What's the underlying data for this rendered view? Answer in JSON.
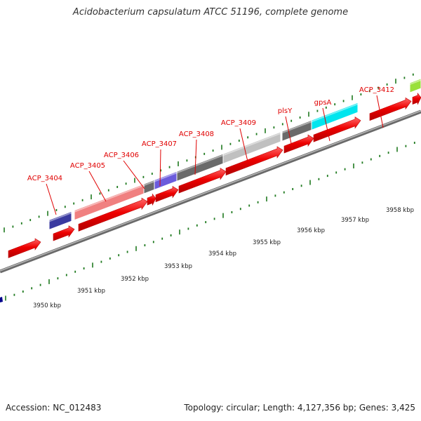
{
  "title": "Acidobacterium capsulatum ATCC 51196, complete genome",
  "footer": {
    "accession": "Accession: NC_012483",
    "summary": "Topology: circular; Length: 4,127,356 bp; Genes: 3,425"
  },
  "colors": {
    "backbone": "#8a8a8a",
    "tick_major": "#1f7a1f",
    "cds": "#ee0000",
    "label": "#e00000"
  },
  "gene_labels": [
    "ACP_3404",
    "ACP_3405",
    "ACP_3406",
    "ACP_3407",
    "ACP_3408",
    "ACP_3409",
    "plsY",
    "gpsA",
    "ACP_3412"
  ],
  "kbp_labels": [
    "3950 kbp",
    "3951 kbp",
    "3952 kbp",
    "3953 kbp",
    "3954 kbp",
    "3955 kbp",
    "3956 kbp",
    "3957 kbp",
    "3958 kbp"
  ],
  "upper_track_colors": [
    "#3a3aa0",
    "#f08080",
    "#6a6a6a",
    "#6b5bdc",
    "#6a6a6a",
    "#c0c0c0",
    "#6a6a6a",
    "#00e5ee",
    "#99e03a"
  ]
}
